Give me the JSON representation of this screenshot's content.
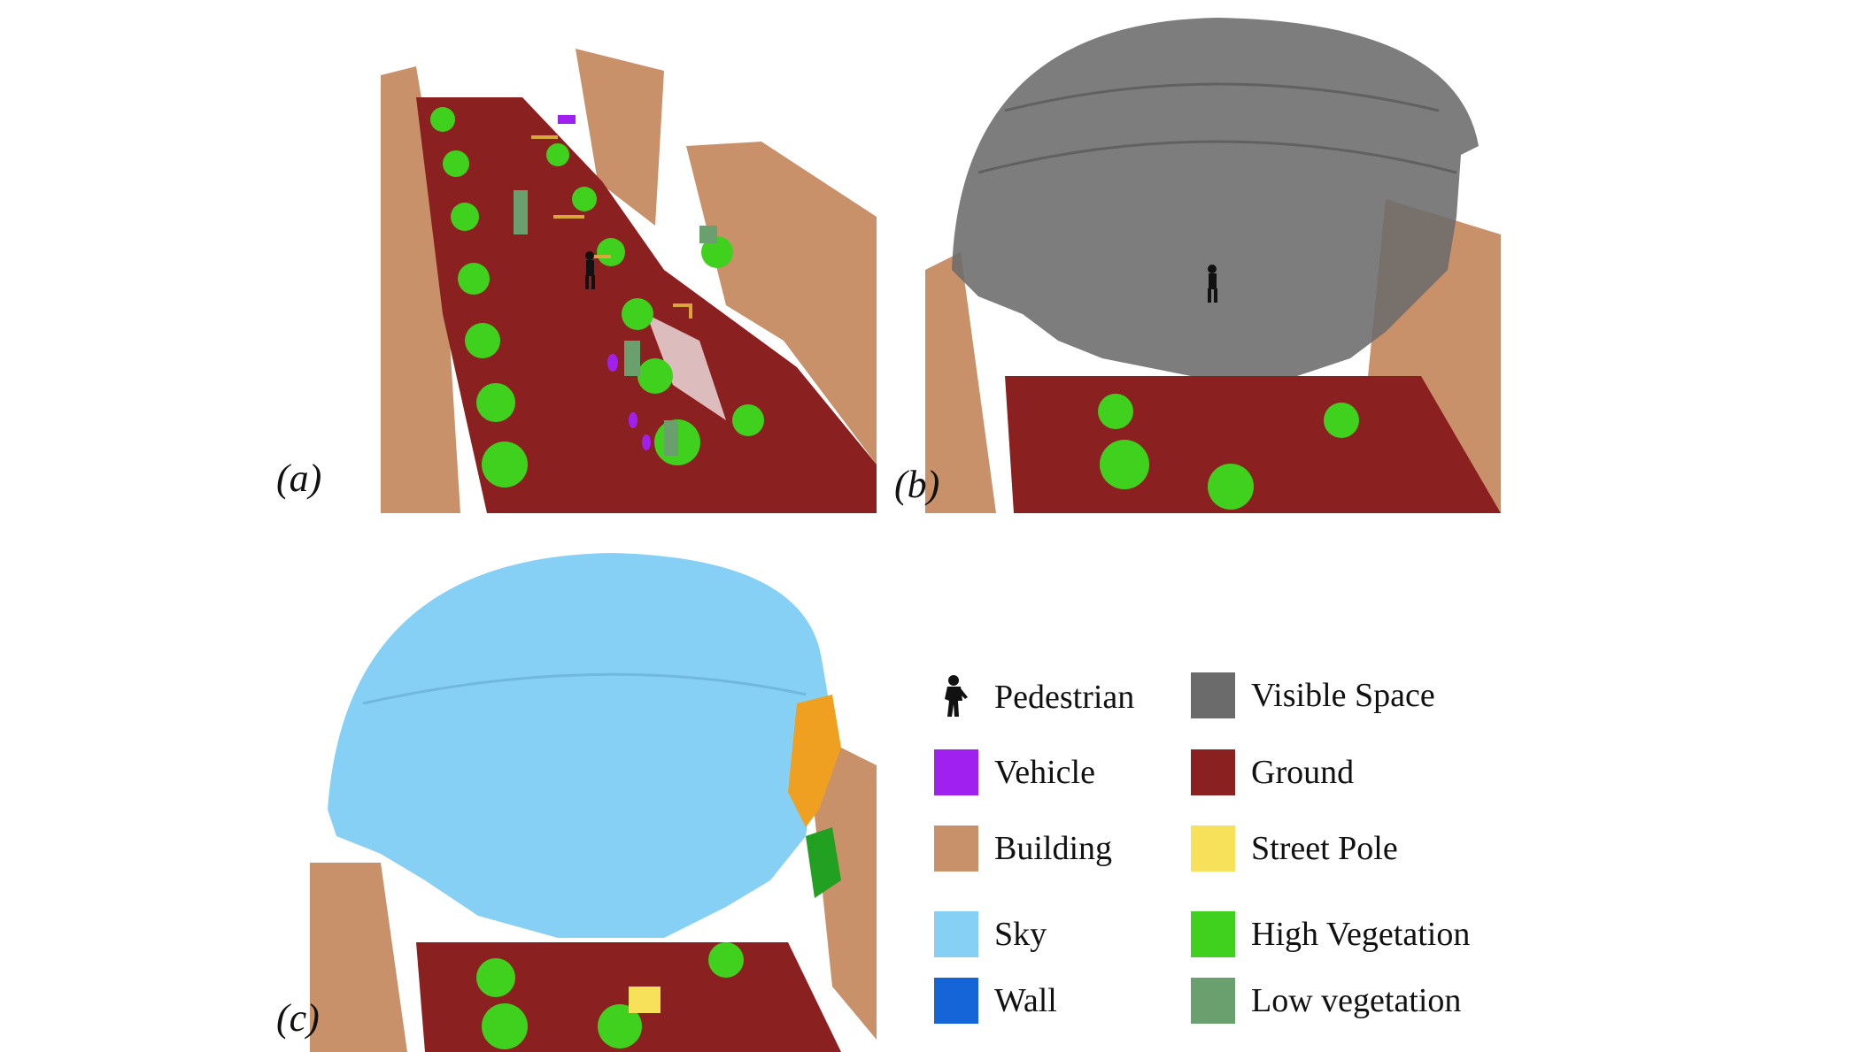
{
  "panels": {
    "a": {
      "label": "(a)"
    },
    "b": {
      "label": "(b)"
    },
    "c": {
      "label": "(c)"
    }
  },
  "legend": {
    "pedestrian": {
      "label": "Pedestrian",
      "icon": "pedestrian-icon",
      "color": "#111111"
    },
    "visible_space": {
      "label": "Visible Space",
      "color": "#6b6b6b"
    },
    "vehicle": {
      "label": "Vehicle",
      "color": "#a020f0"
    },
    "ground": {
      "label": "Ground",
      "color": "#8b2020"
    },
    "building": {
      "label": "Building",
      "color": "#c8916a"
    },
    "street_pole": {
      "label": "Street Pole",
      "color": "#f7e15a"
    },
    "sky": {
      "label": "Sky",
      "color": "#86d0f5"
    },
    "high_vegetation": {
      "label": "High Vegetation",
      "color": "#3fd11d"
    },
    "wall": {
      "label": "Wall",
      "color": "#1565d8"
    },
    "low_vegetation": {
      "label": "Low vegetation",
      "color": "#6a9f6e"
    }
  }
}
